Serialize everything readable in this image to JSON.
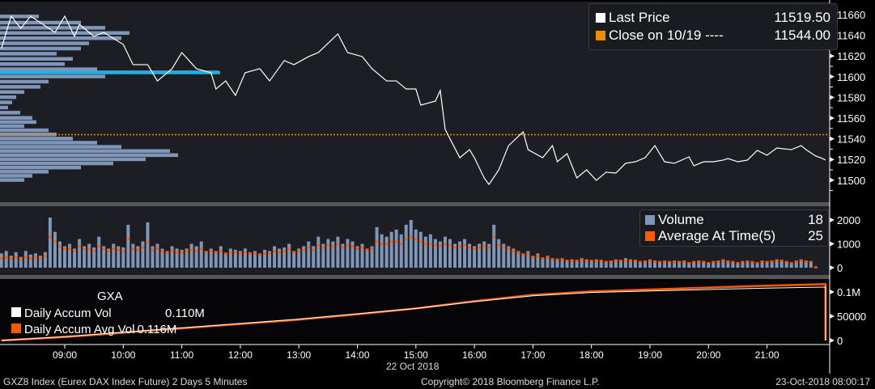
{
  "footer": {
    "left": "GXZ8 Index (Eurex DAX Index Future) 2 Days 5 Minutes",
    "center": "Copyright© 2018 Bloomberg Finance L.P.",
    "right": "23-Oct-2018 08:00:17"
  },
  "colors": {
    "price": "#ffffff",
    "close": "#f08c00",
    "volume": "#7f96b8",
    "average": "#ff5a00",
    "poc": "#1ab2e8",
    "panel": "#1d1e23"
  },
  "chart_data": [
    {
      "type": "line",
      "title": "",
      "xlabel": "22 Oct 2018",
      "x_ticks": [
        "09:00",
        "10:00",
        "11:00",
        "12:00",
        "13:00",
        "14:00",
        "15:00",
        "16:00",
        "17:00",
        "18:00",
        "19:00",
        "20:00",
        "21:00"
      ],
      "y_ticks": [
        11500,
        11520,
        11540,
        11560,
        11580,
        11600,
        11620,
        11640,
        11660
      ],
      "ylim": [
        11482,
        11674
      ],
      "legend": {
        "placement": "top-right",
        "entries": [
          {
            "label": "Last Price",
            "value": "11519.50",
            "color": "#ffffff"
          },
          {
            "label": "Close on 10/19 ----",
            "value": "11544.00",
            "color": "#f08c00"
          }
        ]
      },
      "close_line": 11544,
      "poc_price": 11604,
      "price_profile": [
        [
          11658,
          48
        ],
        [
          11652,
          100
        ],
        [
          11647,
          130
        ],
        [
          11642,
          160
        ],
        [
          11637,
          150
        ],
        [
          11632,
          110
        ],
        [
          11627,
          100
        ],
        [
          11622,
          70
        ],
        [
          11617,
          90
        ],
        [
          11612,
          80
        ],
        [
          11607,
          120
        ],
        [
          11604,
          270
        ],
        [
          11600,
          130
        ],
        [
          11595,
          60
        ],
        [
          11590,
          50
        ],
        [
          11585,
          30
        ],
        [
          11580,
          20
        ],
        [
          11575,
          15
        ],
        [
          11570,
          10
        ],
        [
          11565,
          25
        ],
        [
          11560,
          40
        ],
        [
          11556,
          45
        ],
        [
          11552,
          30
        ],
        [
          11548,
          60
        ],
        [
          11544,
          70
        ],
        [
          11540,
          90
        ],
        [
          11536,
          120
        ],
        [
          11532,
          150
        ],
        [
          11528,
          210
        ],
        [
          11524,
          220
        ],
        [
          11520,
          180
        ],
        [
          11516,
          140
        ],
        [
          11512,
          100
        ],
        [
          11508,
          60
        ],
        [
          11504,
          40
        ],
        [
          11500,
          30
        ]
      ],
      "series": [
        {
          "name": "Last Price",
          "points": [
            [
              "07:55",
              11627.2
            ],
            [
              "08:05",
              11658.4
            ],
            [
              "08:15",
              11646.7
            ],
            [
              "08:25",
              11658.4
            ],
            [
              "08:35",
              11652.2
            ],
            [
              "08:50",
              11642.8
            ],
            [
              "09:00",
              11658.4
            ],
            [
              "09:10",
              11638.9
            ],
            [
              "09:15",
              11650.5
            ],
            [
              "09:30",
              11638.9
            ],
            [
              "09:40",
              11642.8
            ],
            [
              "10:00",
              11631.1
            ],
            [
              "10:10",
              11611.6
            ],
            [
              "10:25",
              11611.6
            ],
            [
              "10:35",
              11595.9
            ],
            [
              "10:50",
              11607.7
            ],
            [
              "11:00",
              11623.3
            ],
            [
              "11:15",
              11607.7
            ],
            [
              "11:30",
              11603.8
            ],
            [
              "11:35",
              11588.1
            ],
            [
              "11:45",
              11595.9
            ],
            [
              "11:55",
              11581.9
            ],
            [
              "12:05",
              11603.8
            ],
            [
              "12:20",
              11607.7
            ],
            [
              "12:30",
              11595.9
            ],
            [
              "12:45",
              11615.5
            ],
            [
              "12:55",
              11611.6
            ],
            [
              "13:10",
              11619.4
            ],
            [
              "13:20",
              11623.3
            ],
            [
              "13:40",
              11641.3
            ],
            [
              "13:50",
              11623.3
            ],
            [
              "14:05",
              11619.4
            ],
            [
              "14:15",
              11607.7
            ],
            [
              "14:30",
              11595.9
            ],
            [
              "14:40",
              11595.9
            ],
            [
              "14:50",
              11588.1
            ],
            [
              "15:00",
              11588.1
            ],
            [
              "15:05",
              11572.5
            ],
            [
              "15:20",
              11576.4
            ],
            [
              "15:25",
              11586.6
            ],
            [
              "15:30",
              11549.1
            ],
            [
              "15:45",
              11521.7
            ],
            [
              "15:55",
              11529.5
            ],
            [
              "16:00",
              11521.7
            ],
            [
              "16:10",
              11502.2
            ],
            [
              "16:15",
              11495.9
            ],
            [
              "16:25",
              11510.0
            ],
            [
              "16:35",
              11533.4
            ],
            [
              "16:50",
              11546.7
            ],
            [
              "16:55",
              11529.5
            ],
            [
              "17:10",
              11521.7
            ],
            [
              "17:20",
              11533.4
            ],
            [
              "17:25",
              11517.8
            ],
            [
              "17:35",
              11525.6
            ],
            [
              "17:45",
              11502.2
            ],
            [
              "17:55",
              11510.0
            ],
            [
              "18:05",
              11499.8
            ],
            [
              "18:15",
              11507.7
            ],
            [
              "18:25",
              11506.9
            ],
            [
              "18:35",
              11516.3
            ],
            [
              "18:45",
              11517.8
            ],
            [
              "18:55",
              11521.7
            ],
            [
              "19:05",
              11533.4
            ],
            [
              "19:15",
              11517.8
            ],
            [
              "19:25",
              11516.3
            ],
            [
              "19:40",
              11522.5
            ],
            [
              "19:45",
              11513.9
            ],
            [
              "19:55",
              11517.8
            ],
            [
              "20:05",
              11517.8
            ],
            [
              "20:15",
              11519.4
            ],
            [
              "20:20",
              11520.9
            ],
            [
              "20:30",
              11517.8
            ],
            [
              "20:40",
              11519.4
            ],
            [
              "20:50",
              11528.8
            ],
            [
              "21:00",
              11524.1
            ],
            [
              "21:10",
              11531.1
            ],
            [
              "21:25",
              11529.5
            ],
            [
              "21:35",
              11533.4
            ],
            [
              "21:40",
              11529.5
            ],
            [
              "21:50",
              11523.3
            ],
            [
              "21:55",
              11521.7
            ],
            [
              "22:00",
              11519.5
            ]
          ]
        }
      ]
    },
    {
      "type": "bar",
      "title": "",
      "y_ticks": [
        0,
        1000,
        2000
      ],
      "ylim": [
        0,
        2500
      ],
      "x_start": "07:55",
      "interval_minutes": 5,
      "legend": {
        "placement": "top-right",
        "entries": [
          {
            "label": "Volume",
            "value": "18",
            "color": "#7f96b8"
          },
          {
            "label": "Average At Time(5)",
            "value": "25",
            "color": "#ff5a00"
          }
        ]
      },
      "series": [
        {
          "name": "Volume",
          "values": [
            600,
            700,
            500,
            650,
            450,
            700,
            550,
            600,
            500,
            650,
            2100,
            1500,
            1100,
            900,
            1000,
            800,
            1200,
            900,
            1000,
            850,
            1300,
            900,
            800,
            1000,
            900,
            850,
            1800,
            1000,
            900,
            1100,
            1900,
            900,
            1000,
            800,
            700,
            900,
            800,
            750,
            800,
            1000,
            900,
            1100,
            700,
            800,
            700,
            900,
            600,
            800,
            750,
            700,
            800,
            650,
            700,
            600,
            750,
            700,
            900,
            800,
            850,
            1000,
            700,
            800,
            900,
            1100,
            900,
            1300,
            1000,
            1200,
            1100,
            1300,
            1000,
            1200,
            1100,
            900,
            1000,
            800,
            900,
            1700,
            1400,
            1300,
            1500,
            1600,
            1400,
            1800,
            2000,
            1600,
            1500,
            1300,
            1400,
            1200,
            1100,
            1300,
            1200,
            1000,
            1100,
            1200,
            1000,
            900,
            1000,
            1100,
            1000,
            1800,
            1200,
            1000,
            900,
            800,
            700,
            600,
            700,
            500,
            600,
            400,
            500,
            400,
            350,
            400,
            300,
            350,
            300,
            400,
            350,
            300,
            350,
            300,
            250,
            300,
            350,
            300,
            400,
            350,
            300,
            250,
            300,
            350,
            300,
            250,
            300,
            250,
            300,
            250,
            300,
            200,
            250,
            300,
            250,
            200,
            250,
            300,
            350,
            300,
            250,
            200,
            250,
            300,
            250,
            200,
            300,
            250,
            300,
            350,
            300,
            250,
            200,
            300,
            350,
            300,
            250,
            18
          ]
        },
        {
          "name": "Average At Time(5)",
          "values": [
            400,
            450,
            400,
            450,
            350,
            450,
            400,
            450,
            400,
            500,
            1300,
            1100,
            900,
            800,
            800,
            700,
            900,
            800,
            800,
            700,
            900,
            800,
            700,
            800,
            750,
            700,
            1200,
            800,
            750,
            850,
            1100,
            750,
            800,
            700,
            650,
            700,
            650,
            650,
            700,
            750,
            700,
            800,
            650,
            700,
            650,
            700,
            600,
            650,
            650,
            600,
            650,
            600,
            600,
            550,
            600,
            600,
            700,
            650,
            700,
            800,
            650,
            700,
            750,
            850,
            750,
            950,
            850,
            950,
            900,
            1000,
            850,
            950,
            900,
            800,
            850,
            750,
            800,
            1100,
            1000,
            1000,
            1100,
            1100,
            1000,
            1200,
            1300,
            1200,
            1100,
            1000,
            1000,
            950,
            900,
            1000,
            950,
            850,
            900,
            950,
            850,
            800,
            850,
            900,
            850,
            1300,
            950,
            850,
            800,
            700,
            650,
            550,
            600,
            450,
            500,
            400,
            450,
            350,
            350,
            350,
            300,
            300,
            300,
            350,
            300,
            300,
            300,
            300,
            250,
            250,
            300,
            300,
            300,
            300,
            300,
            250,
            250,
            300,
            250,
            250,
            250,
            250,
            250,
            250,
            250,
            200,
            250,
            250,
            250,
            200,
            250,
            250,
            300,
            250,
            250,
            200,
            250,
            250,
            250,
            200,
            250,
            250,
            250,
            300,
            300,
            250,
            200,
            250,
            300,
            250,
            250,
            25
          ]
        }
      ]
    },
    {
      "type": "line",
      "title": "GXA",
      "y_ticks": [
        0,
        50000,
        100000
      ],
      "y_tick_labels": [
        "0",
        "50000",
        "0.1M"
      ],
      "ylim": [
        0,
        125000
      ],
      "legend": {
        "placement": "top-left",
        "entries": [
          {
            "label": "Daily Accum Vol",
            "value": "0.110M",
            "color": "#ffffff"
          },
          {
            "label": "Daily Accum Avg Vol",
            "value": "0.116M",
            "color": "#ff5a00"
          }
        ]
      },
      "series": [
        {
          "name": "Daily Accum Vol",
          "points": [
            [
              "07:55",
              0
            ],
            [
              "09:00",
              8000
            ],
            [
              "10:00",
              17000
            ],
            [
              "11:00",
              26000
            ],
            [
              "12:00",
              35000
            ],
            [
              "13:00",
              44000
            ],
            [
              "14:00",
              55000
            ],
            [
              "15:00",
              66000
            ],
            [
              "16:00",
              80000
            ],
            [
              "17:00",
              92000
            ],
            [
              "18:00",
              99000
            ],
            [
              "19:00",
              102000
            ],
            [
              "20:00",
              105000
            ],
            [
              "21:00",
              108000
            ],
            [
              "22:00",
              110000
            ],
            [
              "22:00",
              0
            ]
          ]
        },
        {
          "name": "Daily Accum Avg Vol",
          "points": [
            [
              "07:55",
              0
            ],
            [
              "09:00",
              7000
            ],
            [
              "10:00",
              16000
            ],
            [
              "11:00",
              25000
            ],
            [
              "12:00",
              34000
            ],
            [
              "13:00",
              43000
            ],
            [
              "14:00",
              54000
            ],
            [
              "15:00",
              66000
            ],
            [
              "16:00",
              81000
            ],
            [
              "17:00",
              94000
            ],
            [
              "18:00",
              101000
            ],
            [
              "19:00",
              105000
            ],
            [
              "20:00",
              109000
            ],
            [
              "21:00",
              113000
            ],
            [
              "22:00",
              116000
            ],
            [
              "22:00",
              0
            ]
          ]
        }
      ]
    }
  ]
}
